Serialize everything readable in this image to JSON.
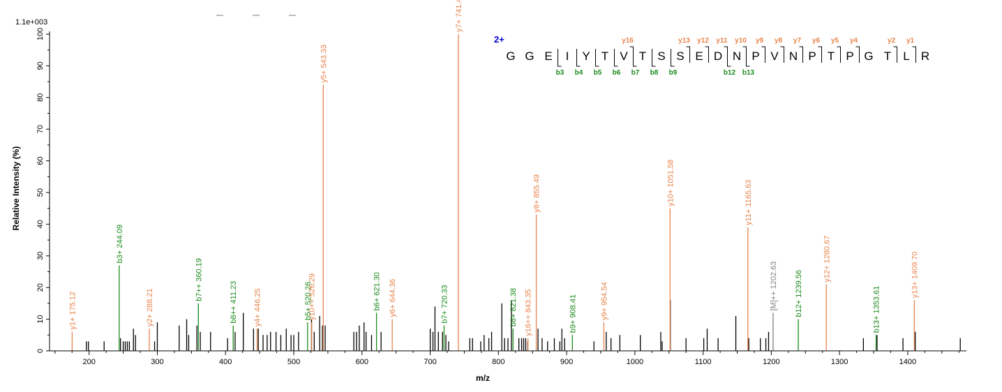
{
  "chart_data": {
    "type": "bar",
    "xlabel": "m/z",
    "ylabel": "Relative   Intensity (%)",
    "max_intensity_label": "1.1e+003",
    "xlim": [
      142,
      1486
    ],
    "ylim": [
      0,
      100
    ],
    "x_ticks": [
      200,
      300,
      400,
      500,
      600,
      700,
      800,
      900,
      1000,
      1100,
      1200,
      1300,
      1400
    ],
    "y_ticks": [
      0,
      10,
      20,
      30,
      40,
      50,
      60,
      70,
      80,
      90,
      100
    ],
    "colors": {
      "y_ion": "#e8834a",
      "b_ion": "#1a8a1a",
      "precursor": "#7f7f7f",
      "other": "#000000",
      "charge": "#0000cc"
    },
    "labeled_peaks": [
      {
        "mz": 175.12,
        "intensity": 6,
        "type": "y",
        "label": "y1+ 175.12"
      },
      {
        "mz": 244.09,
        "intensity": 27,
        "type": "b",
        "label": "b3+ 244.09"
      },
      {
        "mz": 288.21,
        "intensity": 7,
        "type": "y",
        "label": "y2+ 288.21"
      },
      {
        "mz": 360.19,
        "intensity": 15,
        "type": "b",
        "label": "b7++ 360.19"
      },
      {
        "mz": 411.23,
        "intensity": 8,
        "type": "b",
        "label": "b8++ 411.23"
      },
      {
        "mz": 446.25,
        "intensity": 7,
        "type": "y",
        "label": "y4+ 446.25"
      },
      {
        "mz": 520.26,
        "intensity": 9,
        "type": "b",
        "label": "b5+ 520.26"
      },
      {
        "mz": 526.29,
        "intensity": 9,
        "type": "y",
        "label": "y10++ 526.29"
      },
      {
        "mz": 543.33,
        "intensity": 84,
        "type": "y",
        "label": "y5+ 543.33"
      },
      {
        "mz": 621.3,
        "intensity": 12,
        "type": "b",
        "label": "b6+ 621.30"
      },
      {
        "mz": 644.36,
        "intensity": 10,
        "type": "y",
        "label": "y6+ 644.36"
      },
      {
        "mz": 720.33,
        "intensity": 8,
        "type": "b",
        "label": "b7+ 720.33"
      },
      {
        "mz": 741.43,
        "intensity": 100,
        "type": "y",
        "label": "y7+ 741.43"
      },
      {
        "mz": 821.38,
        "intensity": 7,
        "type": "b",
        "label": "b8+ 821.38"
      },
      {
        "mz": 843.35,
        "intensity": 4,
        "type": "y",
        "label": "y16++ 843.35"
      },
      {
        "mz": 855.49,
        "intensity": 43,
        "type": "y",
        "label": "y8+ 855.49"
      },
      {
        "mz": 908.41,
        "intensity": 5,
        "type": "b",
        "label": "b9+ 908.41"
      },
      {
        "mz": 954.54,
        "intensity": 9,
        "type": "y",
        "label": "y9+ 954.54"
      },
      {
        "mz": 1051.58,
        "intensity": 45,
        "type": "y",
        "label": "y10+ 1051.58"
      },
      {
        "mz": 1165.63,
        "intensity": 39,
        "type": "y",
        "label": "y11+ 1165.63"
      },
      {
        "mz": 1202.63,
        "intensity": 12,
        "type": "precursor",
        "label": "[M]++ 1202.63"
      },
      {
        "mz": 1239.56,
        "intensity": 10,
        "type": "b",
        "label": "b12+ 1239.56"
      },
      {
        "mz": 1280.67,
        "intensity": 21,
        "type": "y",
        "label": "y12+ 1280.67"
      },
      {
        "mz": 1353.61,
        "intensity": 5,
        "type": "b",
        "label": "b13+ 1353.61"
      },
      {
        "mz": 1409.7,
        "intensity": 16,
        "type": "y",
        "label": "y13+ 1409.70"
      }
    ],
    "unlabeled_peaks": [
      [
        196,
        3
      ],
      [
        199,
        3
      ],
      [
        222,
        3
      ],
      [
        246,
        4
      ],
      [
        250,
        3
      ],
      [
        253,
        3
      ],
      [
        256,
        3
      ],
      [
        259,
        3
      ],
      [
        265,
        7
      ],
      [
        268,
        5
      ],
      [
        296,
        3
      ],
      [
        300,
        9
      ],
      [
        332,
        8
      ],
      [
        343,
        10
      ],
      [
        346,
        5
      ],
      [
        358,
        8
      ],
      [
        363,
        6
      ],
      [
        378,
        6
      ],
      [
        403,
        4
      ],
      [
        414,
        6
      ],
      [
        426,
        12
      ],
      [
        441,
        7
      ],
      [
        448,
        7
      ],
      [
        455,
        5
      ],
      [
        461,
        5
      ],
      [
        466,
        6
      ],
      [
        474,
        6
      ],
      [
        481,
        5
      ],
      [
        489,
        7
      ],
      [
        496,
        5
      ],
      [
        500,
        5
      ],
      [
        507,
        6
      ],
      [
        526,
        10
      ],
      [
        530,
        6
      ],
      [
        538,
        11
      ],
      [
        542,
        8
      ],
      [
        546,
        8
      ],
      [
        588,
        6
      ],
      [
        592,
        6
      ],
      [
        596,
        8
      ],
      [
        603,
        9
      ],
      [
        606,
        6
      ],
      [
        614,
        5
      ],
      [
        628,
        6
      ],
      [
        700,
        7
      ],
      [
        704,
        6
      ],
      [
        707,
        14
      ],
      [
        712,
        6
      ],
      [
        718,
        6
      ],
      [
        723,
        5
      ],
      [
        727,
        3
      ],
      [
        758,
        4
      ],
      [
        762,
        4
      ],
      [
        774,
        3
      ],
      [
        779,
        5
      ],
      [
        786,
        4
      ],
      [
        790,
        6
      ],
      [
        805,
        15
      ],
      [
        809,
        4
      ],
      [
        814,
        4
      ],
      [
        819,
        16
      ],
      [
        830,
        4
      ],
      [
        834,
        4
      ],
      [
        837,
        4
      ],
      [
        840,
        4
      ],
      [
        843,
        3
      ],
      [
        858,
        7
      ],
      [
        864,
        4
      ],
      [
        872,
        3
      ],
      [
        882,
        4
      ],
      [
        890,
        3
      ],
      [
        893,
        7
      ],
      [
        897,
        4
      ],
      [
        940,
        3
      ],
      [
        958,
        6
      ],
      [
        965,
        4
      ],
      [
        978,
        5
      ],
      [
        1008,
        5
      ],
      [
        1038,
        6
      ],
      [
        1040,
        3
      ],
      [
        1052,
        16
      ],
      [
        1075,
        4
      ],
      [
        1101,
        4
      ],
      [
        1106,
        7
      ],
      [
        1122,
        4
      ],
      [
        1148,
        11
      ],
      [
        1167,
        4
      ],
      [
        1184,
        4
      ],
      [
        1192,
        4
      ],
      [
        1196,
        6
      ],
      [
        1335,
        4
      ],
      [
        1355,
        5
      ],
      [
        1393,
        4
      ],
      [
        1411,
        6
      ],
      [
        1477,
        4
      ]
    ],
    "sequence": {
      "charge_label": "2+",
      "residues": [
        "G",
        "G",
        "E",
        "I",
        "Y",
        "T",
        "V",
        "T",
        "S",
        "S",
        "E",
        "D",
        "N",
        "P",
        "V",
        "N",
        "P",
        "T",
        "P",
        "G",
        "T",
        "L",
        "R"
      ],
      "y_ions": [
        {
          "name": "y16",
          "after": 7
        },
        {
          "name": "y13",
          "after": 10
        },
        {
          "name": "y12",
          "after": 11
        },
        {
          "name": "y11",
          "after": 12
        },
        {
          "name": "y10",
          "after": 13
        },
        {
          "name": "y9",
          "after": 14
        },
        {
          "name": "y8",
          "after": 15
        },
        {
          "name": "y7",
          "after": 16
        },
        {
          "name": "y6",
          "after": 17
        },
        {
          "name": "y5",
          "after": 18
        },
        {
          "name": "y4",
          "after": 19
        },
        {
          "name": "y2",
          "after": 21
        },
        {
          "name": "y1",
          "after": 22
        }
      ],
      "b_ions": [
        {
          "name": "b3",
          "after": 3
        },
        {
          "name": "b4",
          "after": 4
        },
        {
          "name": "b5",
          "after": 5
        },
        {
          "name": "b6",
          "after": 6
        },
        {
          "name": "b7",
          "after": 7
        },
        {
          "name": "b8",
          "after": 8
        },
        {
          "name": "b9",
          "after": 9
        },
        {
          "name": "b12",
          "after": 12
        },
        {
          "name": "b13",
          "after": 13
        }
      ]
    }
  }
}
